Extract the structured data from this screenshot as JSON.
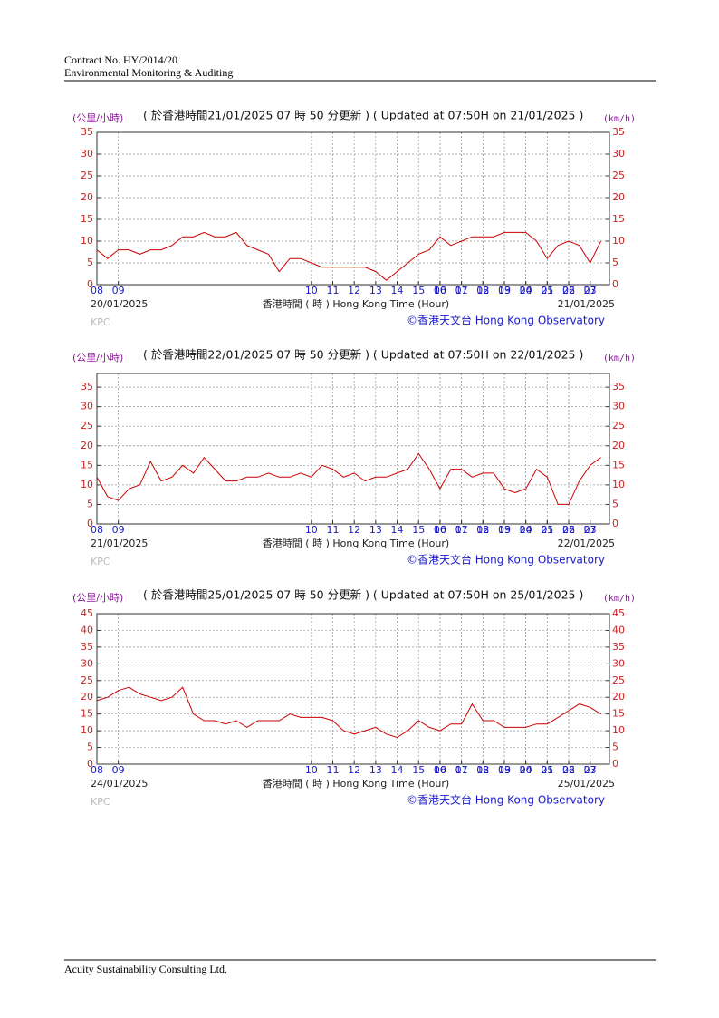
{
  "header": {
    "line1": "Contract No. HY/2014/20",
    "line2": "Environmental Monitoring & Auditing"
  },
  "footer": "Acuity Sustainability Consulting Ltd.",
  "chart_data": [
    {
      "type": "line",
      "title": "( 於香港時間21/01/2025 07 時 50 分更新 ) ( Updated at 07:50H on 21/01/2025 )",
      "y_label": "(公里/小時)",
      "y2_label": "(km/h)",
      "start_date": "20/01/2025",
      "end_date": "21/01/2025",
      "x_label": "香港時間 ( 時 ) Hong Kong Time (Hour)",
      "credit": "©香港天文台 Hong Kong Observatory",
      "station": "KPC",
      "grid": true,
      "xlim": [
        0,
        23.9
      ],
      "xticks": [
        {
          "value": 0,
          "label": "08"
        },
        {
          "value": 1,
          "label": "09"
        },
        10,
        11,
        12,
        13,
        14,
        15,
        16,
        17,
        18,
        19,
        20,
        21,
        22,
        23,
        {
          "value": 16,
          "label": "00"
        },
        {
          "value": 17,
          "label": "01"
        },
        {
          "value": 18,
          "label": "02"
        },
        {
          "value": 19,
          "label": "03"
        },
        {
          "value": 20,
          "label": "04"
        },
        {
          "value": 21,
          "label": "05"
        },
        {
          "value": 22,
          "label": "06"
        },
        {
          "value": 23,
          "label": "07"
        }
      ],
      "ylim": [
        0,
        35
      ],
      "yticks": [
        0,
        5,
        10,
        15,
        20,
        25,
        30,
        35
      ],
      "y2lim": [
        0,
        35
      ],
      "y2ticks": [
        0,
        5,
        10,
        15,
        20,
        25,
        30,
        35
      ],
      "series": [
        {
          "color": "#cc0000",
          "x": [
            0,
            0.5,
            1,
            1.5,
            2,
            2.5,
            3,
            3.5,
            4,
            4.5,
            5,
            5.5,
            6,
            6.5,
            7,
            7.5,
            8,
            8.5,
            9,
            9.5,
            10,
            10.5,
            11,
            11.5,
            12,
            12.5,
            13,
            13.5,
            14,
            14.5,
            15,
            15.5,
            16,
            16.5,
            17,
            17.5,
            18,
            18.5,
            19,
            19.5,
            20,
            20.5,
            21,
            21.5,
            22,
            22.5,
            23,
            23.5
          ],
          "values": [
            8,
            6,
            8,
            8,
            7,
            8,
            8,
            9,
            11,
            11,
            12,
            11,
            11,
            12,
            9,
            8,
            7,
            3,
            6,
            6,
            5,
            4,
            4,
            4,
            4,
            4,
            3,
            1,
            3,
            5,
            7,
            8,
            11,
            9,
            10,
            11,
            11,
            11,
            12,
            12,
            12,
            10,
            6,
            9,
            10,
            9,
            5,
            10
          ]
        }
      ]
    },
    {
      "type": "line",
      "title": "( 於香港時間22/01/2025 07 時 50 分更新 ) ( Updated at 07:50H on 22/01/2025 )",
      "y_label": "(公里/小時)",
      "y2_label": "(km/h)",
      "start_date": "21/01/2025",
      "end_date": "22/01/2025",
      "x_label": "香港時間 ( 時 ) Hong Kong Time (Hour)",
      "credit": "©香港天文台 Hong Kong Observatory",
      "station": "KPC",
      "grid": true,
      "xlim": [
        0,
        23.9
      ],
      "xticks": [
        {
          "value": 0,
          "label": "08"
        },
        {
          "value": 1,
          "label": "09"
        },
        10,
        11,
        12,
        13,
        14,
        15,
        16,
        17,
        18,
        19,
        20,
        21,
        22,
        23,
        {
          "value": 16,
          "label": "00"
        },
        {
          "value": 17,
          "label": "01"
        },
        {
          "value": 18,
          "label": "02"
        },
        {
          "value": 19,
          "label": "03"
        },
        {
          "value": 20,
          "label": "04"
        },
        {
          "value": 21,
          "label": "05"
        },
        {
          "value": 22,
          "label": "06"
        },
        {
          "value": 23,
          "label": "07"
        }
      ],
      "ylim": [
        0,
        38.5
      ],
      "yticks": [
        0,
        5,
        10,
        15,
        20,
        25,
        30,
        35
      ],
      "y2lim": [
        0,
        38.5
      ],
      "y2ticks": [
        0,
        5,
        10,
        15,
        20,
        25,
        30,
        35
      ],
      "series": [
        {
          "color": "#cc0000",
          "x": [
            0,
            0.5,
            1,
            1.5,
            2,
            2.5,
            3,
            3.5,
            4,
            4.5,
            5,
            5.5,
            6,
            6.5,
            7,
            7.5,
            8,
            8.5,
            9,
            9.5,
            10,
            10.5,
            11,
            11.5,
            12,
            12.5,
            13,
            13.5,
            14,
            14.5,
            15,
            15.5,
            16,
            16.5,
            17,
            17.5,
            18,
            18.5,
            19,
            19.5,
            20,
            20.5,
            21,
            21.5,
            22,
            22.5,
            23,
            23.5
          ],
          "values": [
            12,
            7,
            6,
            9,
            10,
            16,
            11,
            12,
            15,
            13,
            17,
            14,
            11,
            11,
            12,
            12,
            13,
            12,
            12,
            13,
            12,
            15,
            14,
            12,
            13,
            11,
            12,
            12,
            13,
            14,
            18,
            14,
            9,
            14,
            14,
            12,
            13,
            13,
            9,
            8,
            9,
            14,
            12,
            5,
            5,
            11,
            15,
            17
          ]
        }
      ]
    },
    {
      "type": "line",
      "title": "( 於香港時間25/01/2025 07 時 50 分更新 ) ( Updated at 07:50H on 25/01/2025 )",
      "y_label": "(公里/小時)",
      "y2_label": "(km/h)",
      "start_date": "24/01/2025",
      "end_date": "25/01/2025",
      "x_label": "香港時間 ( 時 ) Hong Kong Time (Hour)",
      "credit": "©香港天文台 Hong Kong Observatory",
      "station": "KPC",
      "grid": true,
      "xlim": [
        0,
        23.9
      ],
      "xticks": [
        {
          "value": 0,
          "label": "08"
        },
        {
          "value": 1,
          "label": "09"
        },
        10,
        11,
        12,
        13,
        14,
        15,
        16,
        17,
        18,
        19,
        20,
        21,
        22,
        23,
        {
          "value": 16,
          "label": "00"
        },
        {
          "value": 17,
          "label": "01"
        },
        {
          "value": 18,
          "label": "02"
        },
        {
          "value": 19,
          "label": "03"
        },
        {
          "value": 20,
          "label": "04"
        },
        {
          "value": 21,
          "label": "05"
        },
        {
          "value": 22,
          "label": "06"
        },
        {
          "value": 23,
          "label": "07"
        }
      ],
      "ylim": [
        0,
        45
      ],
      "yticks": [
        0,
        5,
        10,
        15,
        20,
        25,
        30,
        35,
        40,
        45
      ],
      "y2lim": [
        0,
        45
      ],
      "y2ticks": [
        0,
        5,
        10,
        15,
        20,
        25,
        30,
        35,
        40,
        45
      ],
      "series": [
        {
          "color": "#cc0000",
          "x": [
            0,
            0.5,
            1,
            1.5,
            2,
            2.5,
            3,
            3.5,
            4,
            4.5,
            5,
            5.5,
            6,
            6.5,
            7,
            7.5,
            8,
            8.5,
            9,
            9.5,
            10,
            10.5,
            11,
            11.5,
            12,
            12.5,
            13,
            13.5,
            14,
            14.5,
            15,
            15.5,
            16,
            16.5,
            17,
            17.5,
            18,
            18.5,
            19,
            19.5,
            20,
            20.5,
            21,
            21.5,
            22,
            22.5,
            23,
            23.5
          ],
          "values": [
            19,
            20,
            22,
            23,
            21,
            20,
            19,
            20,
            23,
            15,
            13,
            13,
            12,
            13,
            11,
            13,
            13,
            13,
            15,
            14,
            14,
            14,
            13,
            10,
            9,
            10,
            11,
            9,
            8,
            10,
            13,
            11,
            10,
            12,
            12,
            18,
            13,
            13,
            11,
            11,
            11,
            12,
            12,
            14,
            16,
            18,
            17,
            15
          ]
        }
      ]
    }
  ]
}
